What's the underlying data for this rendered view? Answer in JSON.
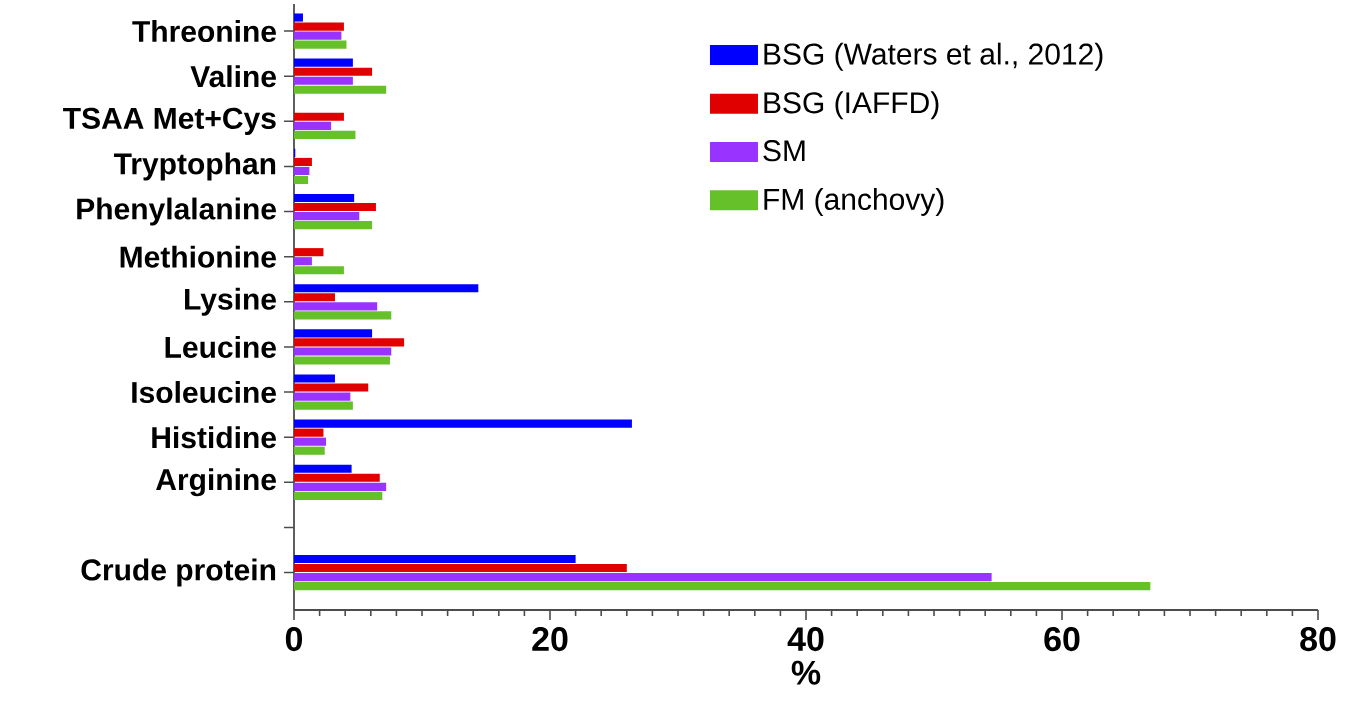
{
  "chart_data": {
    "type": "bar",
    "orientation": "horizontal",
    "xlabel": "%",
    "categories": [
      "Threonine",
      "Valine",
      "TSAA Met+Cys",
      "Tryptophan",
      "Phenylalanine",
      "Methionine",
      "Lysine",
      "Leucine",
      "Isoleucine",
      "Histidine",
      "Arginine",
      null,
      "Crude protein"
    ],
    "series": [
      {
        "name": "BSG (Waters et al., 2012)",
        "color": "#0000ff",
        "values": [
          0.7,
          4.6,
          null,
          0.1,
          4.7,
          null,
          14.4,
          6.1,
          3.2,
          26.4,
          4.5,
          null,
          22
        ]
      },
      {
        "name": "BSG (IAFFD)",
        "color": "#e00000",
        "values": [
          3.9,
          6.1,
          3.9,
          1.4,
          6.4,
          2.3,
          3.2,
          8.6,
          5.8,
          2.3,
          6.7,
          null,
          26
        ]
      },
      {
        "name": "SM",
        "color": "#9933ff",
        "values": [
          3.7,
          4.6,
          2.9,
          1.2,
          5.1,
          1.4,
          6.5,
          7.6,
          4.4,
          2.5,
          7.2,
          null,
          54.5
        ]
      },
      {
        "name": "FM (anchovy)",
        "color": "#66c02a",
        "values": [
          4.1,
          7.2,
          4.8,
          1.1,
          6.1,
          3.9,
          7.6,
          7.5,
          4.6,
          2.4,
          6.9,
          null,
          66.9
        ]
      }
    ],
    "xlim": [
      0,
      80
    ],
    "xticks": [
      0,
      20,
      40,
      60,
      80
    ],
    "grid": false,
    "legend": "top right"
  }
}
